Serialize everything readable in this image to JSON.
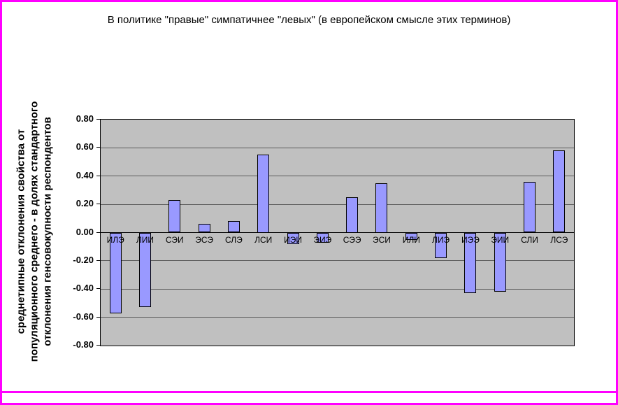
{
  "window": {
    "background": "#FFFFFF",
    "border_color": "#FF00FF"
  },
  "chart_data": {
    "type": "bar",
    "title": "В политике \"правые\" симпатичнее \"левых\" (в европейском смысле этих терминов)",
    "ylabel": "среднетипные отклонения свойства от\nпопуляционного среднего - в долях стандартного\nотклонения генсовокупности респондентов",
    "xlabel": "",
    "categories": [
      "ИЛЭ",
      "ЛИИ",
      "СЭИ",
      "ЭСЭ",
      "СЛЭ",
      "ЛСИ",
      "ИЭИ",
      "ЭИЭ",
      "СЭЭ",
      "ЭСИ",
      "ИЛИ",
      "ЛИЭ",
      "ИЭЭ",
      "ЭИИ",
      "СЛИ",
      "ЛСЭ"
    ],
    "values": [
      -0.57,
      -0.53,
      0.23,
      0.06,
      0.08,
      0.55,
      -0.08,
      -0.07,
      0.25,
      0.35,
      -0.05,
      -0.18,
      -0.43,
      -0.42,
      0.36,
      0.58
    ],
    "ylim": [
      -0.8,
      0.8
    ],
    "ytick_labels": [
      "0.80",
      "0.60",
      "0.40",
      "0.20",
      "0.00",
      "-0.20",
      "-0.40",
      "-0.60",
      "-0.80"
    ],
    "grid": true,
    "legend": "none",
    "colors": {
      "plot_background": "#C0C0C0",
      "bar_fill": "#9999FF",
      "bar_border": "#000000",
      "gridline": "#5A5A5A",
      "axis": "#000000",
      "text": "#000000"
    }
  }
}
